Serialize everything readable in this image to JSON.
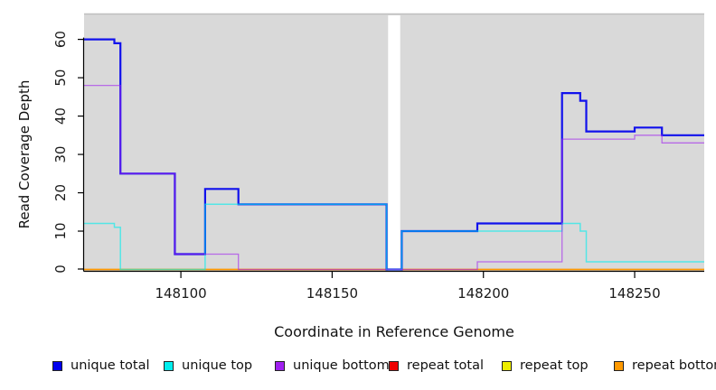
{
  "chart_data": {
    "type": "line",
    "subtype": "step-coverage",
    "title": "",
    "xlabel": "Coordinate in Reference Genome",
    "ylabel": "Read Coverage Depth",
    "xlim": [
      148068,
      148273
    ],
    "ylim": [
      0,
      66.5
    ],
    "x_ticks": [
      148100,
      148150,
      148200,
      148250
    ],
    "y_ticks": [
      0,
      10,
      20,
      30,
      40,
      50,
      60
    ],
    "grid": false,
    "plot_background": "#d9d9d9",
    "gap_region": {
      "from": 148168.5,
      "to": 148172.5,
      "color": "#ffffff"
    },
    "legend_position": "bottom",
    "draw_order": [
      "repeat total",
      "repeat top",
      "repeat bottom",
      "unique total",
      "unique top",
      "unique bottom"
    ],
    "series": [
      {
        "name": "unique total",
        "color": "#0000ee",
        "line_width": 2.2,
        "opacity": 0.92,
        "points": [
          [
            148068,
            60
          ],
          [
            148078,
            59
          ],
          [
            148080,
            25
          ],
          [
            148098,
            4
          ],
          [
            148108,
            21
          ],
          [
            148119,
            17
          ],
          [
            148168,
            0
          ],
          [
            148173,
            10
          ],
          [
            148198,
            12
          ],
          [
            148226,
            46
          ],
          [
            148232,
            44
          ],
          [
            148234,
            36
          ],
          [
            148250,
            37
          ],
          [
            148259,
            35
          ]
        ]
      },
      {
        "name": "unique top",
        "color": "#00eeee",
        "line_width": 1.5,
        "opacity": 0.62,
        "points": [
          [
            148068,
            12
          ],
          [
            148078,
            11
          ],
          [
            148080,
            0
          ],
          [
            148108,
            17
          ],
          [
            148168,
            0
          ],
          [
            148173,
            10
          ],
          [
            148226,
            12
          ],
          [
            148232,
            10
          ],
          [
            148234,
            2
          ]
        ]
      },
      {
        "name": "unique bottom",
        "color": "#a020f0",
        "line_width": 1.3,
        "opacity": 0.6,
        "points": [
          [
            148068,
            48
          ],
          [
            148080,
            25
          ],
          [
            148098,
            4
          ],
          [
            148119,
            0
          ],
          [
            148198,
            2
          ],
          [
            148226,
            34
          ],
          [
            148250,
            35
          ],
          [
            148259,
            33
          ]
        ]
      },
      {
        "name": "repeat total",
        "color": "#ee0000",
        "line_width": 1.3,
        "opacity": 1,
        "points": [
          [
            148068,
            0
          ]
        ]
      },
      {
        "name": "repeat top",
        "color": "#eeee00",
        "line_width": 1.3,
        "opacity": 1,
        "points": [
          [
            148068,
            0
          ]
        ]
      },
      {
        "name": "repeat bottom",
        "color": "#ff9900",
        "line_width": 1.6,
        "opacity": 1,
        "points": [
          [
            148068,
            0
          ]
        ]
      }
    ],
    "axis_color": "#000000",
    "tick_label_color": "#1a1a1a"
  }
}
